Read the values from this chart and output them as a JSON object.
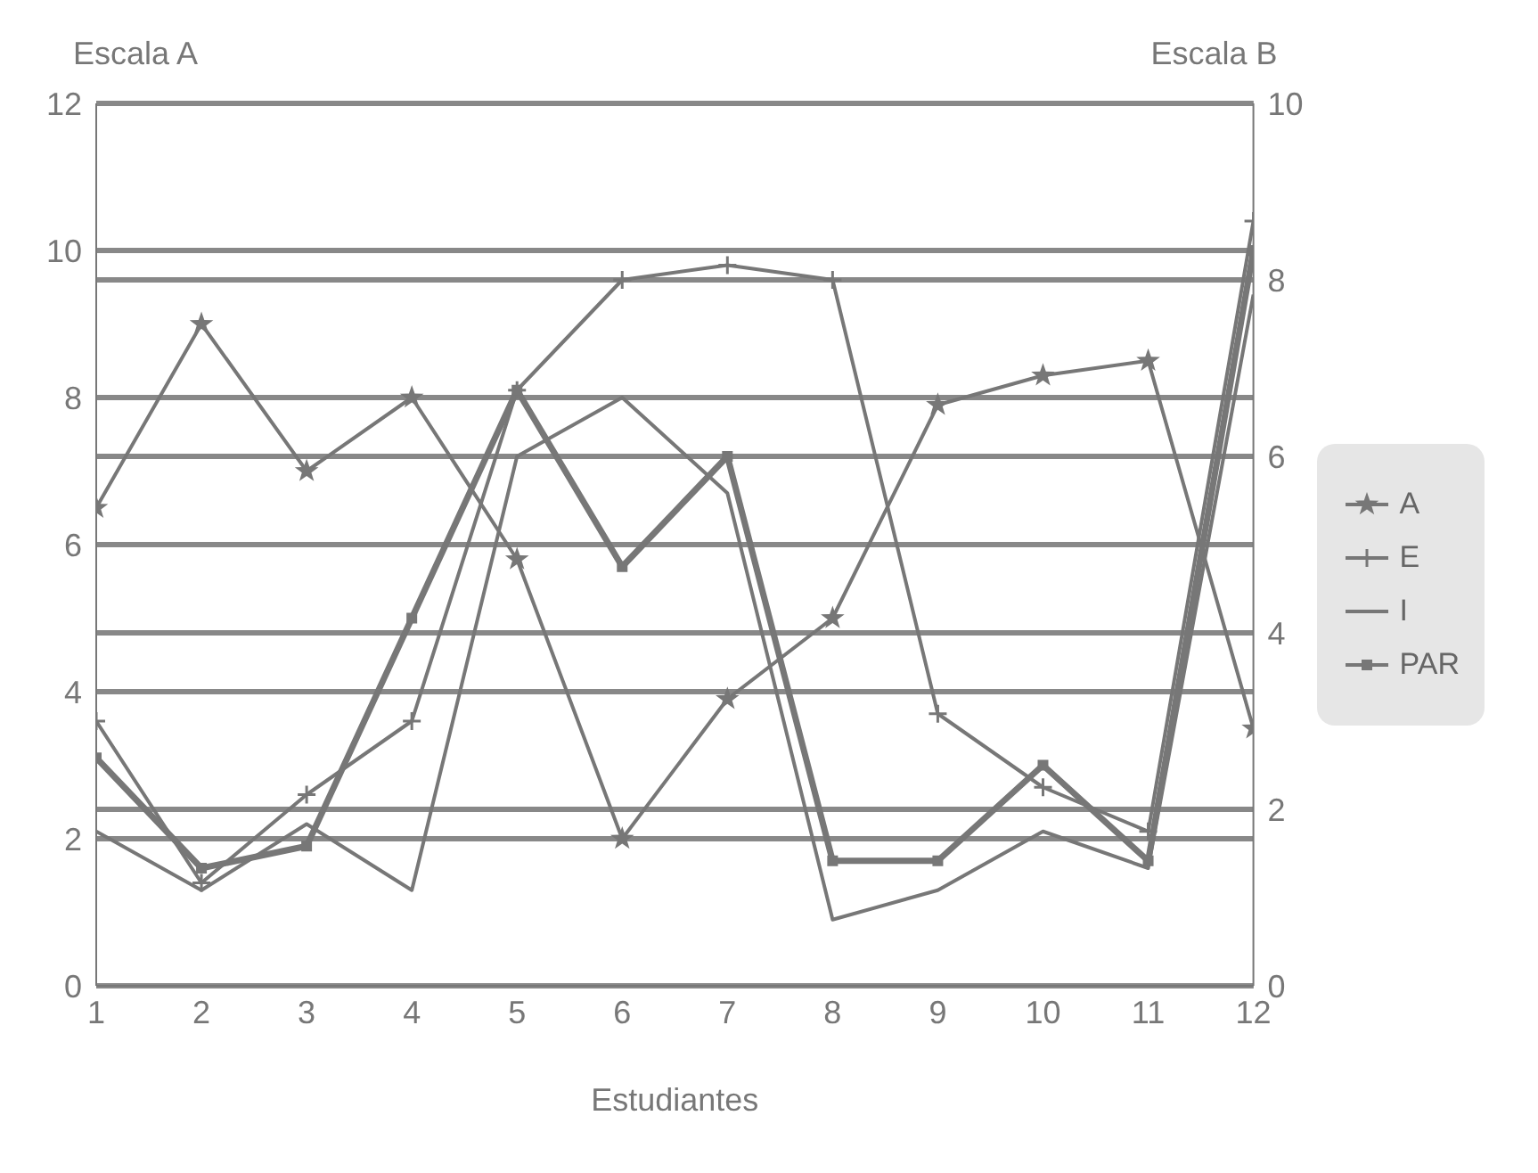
{
  "chart_data": {
    "type": "line",
    "xlabel": "Estudiantes",
    "ylabel": "Escala A",
    "y2label": "Escala B",
    "x": [
      1,
      2,
      3,
      4,
      5,
      6,
      7,
      8,
      9,
      10,
      11,
      12
    ],
    "xlim": [
      1,
      12
    ],
    "xticks": [
      1,
      2,
      3,
      4,
      5,
      6,
      7,
      8,
      9,
      10,
      11,
      12
    ],
    "ylim": [
      0,
      12
    ],
    "yticks": [
      0,
      2,
      4,
      6,
      8,
      10,
      12
    ],
    "y2lim": [
      0,
      10
    ],
    "y2ticks": [
      0,
      2,
      4,
      6,
      8,
      10
    ],
    "grid": "y",
    "legend": "right",
    "series": [
      {
        "name": "A",
        "color": "#777777",
        "marker": "star",
        "values": [
          6.5,
          9,
          7,
          8,
          5.8,
          2,
          3.9,
          5,
          7.9,
          8.3,
          8.5,
          3.5
        ]
      },
      {
        "name": "E",
        "color": "#777777",
        "marker": "cross",
        "values": [
          3.6,
          1.4,
          2.6,
          3.6,
          8.1,
          9.6,
          9.8,
          9.6,
          3.7,
          2.7,
          2.1,
          10.4
        ]
      },
      {
        "name": "I",
        "color": "#777777",
        "marker": "none",
        "values": [
          2.1,
          1.3,
          2.2,
          1.3,
          7.2,
          8,
          6.7,
          0.9,
          1.3,
          2.1,
          1.6,
          9.4
        ]
      },
      {
        "name": "PAR",
        "color": "#777777",
        "marker": "square",
        "values": [
          3.1,
          1.6,
          1.9,
          5,
          8.1,
          5.7,
          7.2,
          1.7,
          1.7,
          3,
          1.7,
          10
        ]
      }
    ]
  }
}
